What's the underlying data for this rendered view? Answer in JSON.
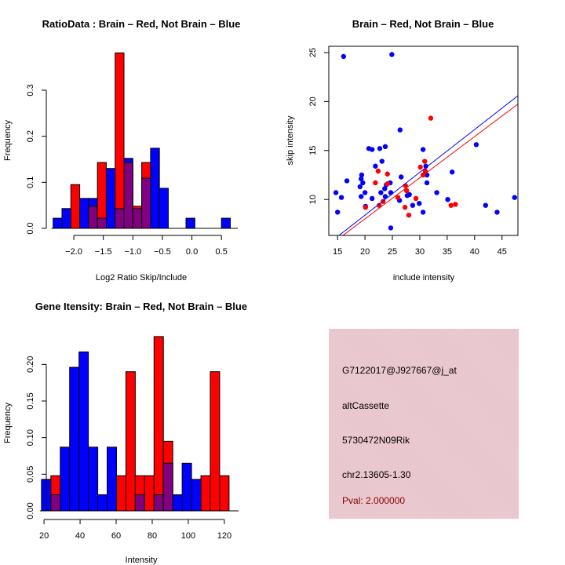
{
  "chart_data": [
    {
      "id": "ratio",
      "type": "bar",
      "title": "RatioData : Brain – Red, Not Brain – Blue",
      "xlabel": "Log2 Ratio Skip/Include",
      "ylabel": "Frequency",
      "xlim": [
        -2.35,
        0.75
      ],
      "ylim": [
        0,
        0.38
      ],
      "xticks": [
        -2.0,
        -1.5,
        -1.0,
        -0.5,
        0.0,
        0.5
      ],
      "xtick_labels": [
        "−2.0",
        "−1.5",
        "−1.0",
        "−0.5",
        "0.0",
        "0.5"
      ],
      "yticks": [
        0.0,
        0.1,
        0.2,
        0.3
      ],
      "ytick_labels": [
        "0.0",
        "0.1",
        "0.2",
        "0.3"
      ],
      "bin_start": -2.35,
      "bin_width": 0.15,
      "series": [
        {
          "name": "Not Brain",
          "color": "#0000ff",
          "values": [
            0.022,
            0.043,
            0,
            0.065,
            0.065,
            0.022,
            0.13,
            0.043,
            0.152,
            0.043,
            0.109,
            0.174,
            0.087,
            0,
            0,
            0.022,
            0,
            0,
            0,
            0.022
          ]
        },
        {
          "name": "Brain",
          "color": "#ff0000",
          "values": [
            0,
            0,
            0.095,
            0,
            0.048,
            0.143,
            0,
            0.381,
            0.143,
            0.048,
            0.143,
            0,
            0,
            0,
            0,
            0,
            0,
            0,
            0,
            0
          ]
        }
      ],
      "overlap_color": "#800080"
    },
    {
      "id": "scatter",
      "type": "scatter",
      "title": "Brain – Red, Not Brain – Blue",
      "xlabel": "include intensity",
      "ylabel": "skip intensity",
      "xlim": [
        13.4,
        47.9
      ],
      "ylim": [
        6.33,
        25.64
      ],
      "xticks": [
        15,
        20,
        25,
        30,
        35,
        40,
        45
      ],
      "xtick_labels": [
        "15",
        "20",
        "25",
        "30",
        "35",
        "40",
        "45"
      ],
      "yticks": [
        10,
        15,
        20,
        25
      ],
      "ytick_labels": [
        "10",
        "15",
        "20",
        "25"
      ],
      "series": [
        {
          "name": "Not Brain",
          "color": "#0000ff",
          "points": [
            [
              16.1,
              24.6
            ],
            [
              24.9,
              24.8
            ],
            [
              26.4,
              17.1
            ],
            [
              14.7,
              10.7
            ],
            [
              15.7,
              10.2
            ],
            [
              16.7,
              11.9
            ],
            [
              15.0,
              8.7
            ],
            [
              20.7,
              15.2
            ],
            [
              21.3,
              15.1
            ],
            [
              22.7,
              15.2
            ],
            [
              23.7,
              15.4
            ],
            [
              23.1,
              13.9
            ],
            [
              21.9,
              13.4
            ],
            [
              19.4,
              12.5
            ],
            [
              19.3,
              12.1
            ],
            [
              19.6,
              11.7
            ],
            [
              19.1,
              11.3
            ],
            [
              20.0,
              10.7
            ],
            [
              19.3,
              10.3
            ],
            [
              20.1,
              9.3
            ],
            [
              21.3,
              10.1
            ],
            [
              22.9,
              10.7
            ],
            [
              23.6,
              11.1
            ],
            [
              23.9,
              11.5
            ],
            [
              24.6,
              11.7
            ],
            [
              24.7,
              10.7
            ],
            [
              23.7,
              10.3
            ],
            [
              24.7,
              7.1
            ],
            [
              26.6,
              12.3
            ],
            [
              26.3,
              9.9
            ],
            [
              27.7,
              10.4
            ],
            [
              28.1,
              10.5
            ],
            [
              28.7,
              9.4
            ],
            [
              29.9,
              9.6
            ],
            [
              30.6,
              8.7
            ],
            [
              30.6,
              15.1
            ],
            [
              31.1,
              13.4
            ],
            [
              31.3,
              12.5
            ],
            [
              31.3,
              11.7
            ],
            [
              33.1,
              10.7
            ],
            [
              35.1,
              10.0
            ],
            [
              35.9,
              12.8
            ],
            [
              40.3,
              15.6
            ],
            [
              42.0,
              9.4
            ],
            [
              44.1,
              8.7
            ],
            [
              47.3,
              10.2
            ]
          ],
          "fit_line": {
            "slope": 0.437,
            "intercept": -0.34
          }
        },
        {
          "name": "Brain",
          "color": "#ff0000",
          "points": [
            [
              32.0,
              18.3
            ],
            [
              22.4,
              12.9
            ],
            [
              24.1,
              12.6
            ],
            [
              21.9,
              11.7
            ],
            [
              24.1,
              11.6
            ],
            [
              20.1,
              9.2
            ],
            [
              22.6,
              9.4
            ],
            [
              23.3,
              9.8
            ],
            [
              26.0,
              10.2
            ],
            [
              27.4,
              11.4
            ],
            [
              27.6,
              10.9
            ],
            [
              27.3,
              9.2
            ],
            [
              28.0,
              8.4
            ],
            [
              29.3,
              10.1
            ],
            [
              30.1,
              13.3
            ],
            [
              30.9,
              13.9
            ],
            [
              31.0,
              12.9
            ],
            [
              30.6,
              12.5
            ],
            [
              35.7,
              9.4
            ],
            [
              36.5,
              9.5
            ]
          ],
          "fit_line": {
            "slope": 0.42,
            "intercept": -0.38
          }
        }
      ]
    },
    {
      "id": "gene",
      "type": "bar",
      "title": "Gene Itensity: Brain – Red, Not Brain – Blue",
      "xlabel": "Intensity",
      "ylabel": "Frequency",
      "xlim": [
        13,
        127
      ],
      "ylim": [
        0,
        0.24
      ],
      "xticks": [
        20,
        40,
        60,
        80,
        100,
        120
      ],
      "xtick_labels": [
        "20",
        "40",
        "60",
        "80",
        "100",
        "120"
      ],
      "yticks": [
        0.0,
        0.05,
        0.1,
        0.15,
        0.2
      ],
      "ytick_labels": [
        "0.00",
        "0.05",
        "0.10",
        "0.15",
        "0.20"
      ],
      "bin_start": 18.6,
      "bin_width": 5.2,
      "series": [
        {
          "name": "Not Brain",
          "color": "#0000ff",
          "values": [
            0.043,
            0.022,
            0.087,
            0.196,
            0.217,
            0.087,
            0.022,
            0.087,
            0,
            0,
            0.022,
            0,
            0.022,
            0.065,
            0.022,
            0.065,
            0.043,
            0,
            0,
            0
          ]
        },
        {
          "name": "Brain",
          "color": "#ff0000",
          "values": [
            0,
            0.048,
            0,
            0,
            0,
            0,
            0,
            0,
            0.048,
            0.19,
            0.048,
            0.048,
            0.238,
            0.095,
            0,
            0,
            0,
            0.048,
            0.19,
            0.048
          ]
        }
      ],
      "overlap_color": "#800080"
    }
  ],
  "info_panel": {
    "background": "#e8c4cc",
    "probe_id": "G7122017@J927667@j_at",
    "event_type": "altCassette",
    "gene": "5730472N09Rik",
    "location": "chr2.13605-1.30",
    "pval": "Pval: 2.000000",
    "pval_color": "#8b0000"
  }
}
